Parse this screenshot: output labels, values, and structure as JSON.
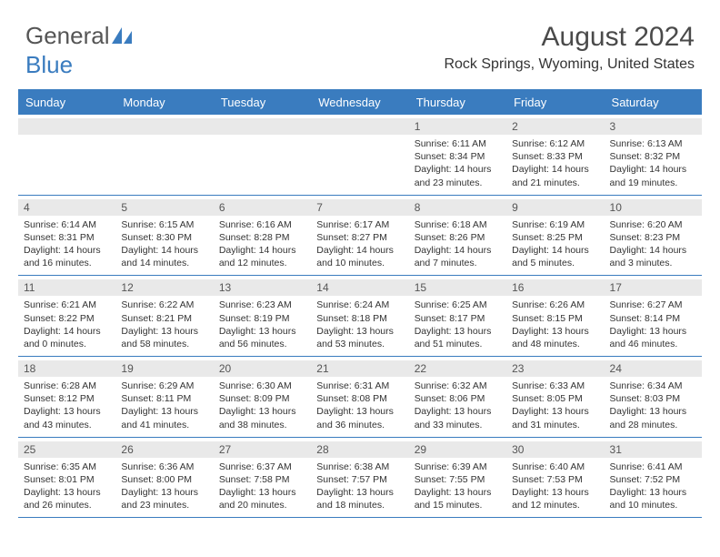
{
  "logo": {
    "text1": "General",
    "text2": "Blue"
  },
  "title": "August 2024",
  "location": "Rock Springs, Wyoming, United States",
  "colors": {
    "header_bg": "#3a7cbf",
    "header_text": "#ffffff",
    "band_bg": "#e9e9e9",
    "text": "#333333",
    "rule": "#3a7cbf"
  },
  "day_names": [
    "Sunday",
    "Monday",
    "Tuesday",
    "Wednesday",
    "Thursday",
    "Friday",
    "Saturday"
  ],
  "weeks": [
    [
      {
        "day": "",
        "sunrise": "",
        "sunset": "",
        "daylight": ""
      },
      {
        "day": "",
        "sunrise": "",
        "sunset": "",
        "daylight": ""
      },
      {
        "day": "",
        "sunrise": "",
        "sunset": "",
        "daylight": ""
      },
      {
        "day": "",
        "sunrise": "",
        "sunset": "",
        "daylight": ""
      },
      {
        "day": "1",
        "sunrise": "Sunrise: 6:11 AM",
        "sunset": "Sunset: 8:34 PM",
        "daylight": "Daylight: 14 hours and 23 minutes."
      },
      {
        "day": "2",
        "sunrise": "Sunrise: 6:12 AM",
        "sunset": "Sunset: 8:33 PM",
        "daylight": "Daylight: 14 hours and 21 minutes."
      },
      {
        "day": "3",
        "sunrise": "Sunrise: 6:13 AM",
        "sunset": "Sunset: 8:32 PM",
        "daylight": "Daylight: 14 hours and 19 minutes."
      }
    ],
    [
      {
        "day": "4",
        "sunrise": "Sunrise: 6:14 AM",
        "sunset": "Sunset: 8:31 PM",
        "daylight": "Daylight: 14 hours and 16 minutes."
      },
      {
        "day": "5",
        "sunrise": "Sunrise: 6:15 AM",
        "sunset": "Sunset: 8:30 PM",
        "daylight": "Daylight: 14 hours and 14 minutes."
      },
      {
        "day": "6",
        "sunrise": "Sunrise: 6:16 AM",
        "sunset": "Sunset: 8:28 PM",
        "daylight": "Daylight: 14 hours and 12 minutes."
      },
      {
        "day": "7",
        "sunrise": "Sunrise: 6:17 AM",
        "sunset": "Sunset: 8:27 PM",
        "daylight": "Daylight: 14 hours and 10 minutes."
      },
      {
        "day": "8",
        "sunrise": "Sunrise: 6:18 AM",
        "sunset": "Sunset: 8:26 PM",
        "daylight": "Daylight: 14 hours and 7 minutes."
      },
      {
        "day": "9",
        "sunrise": "Sunrise: 6:19 AM",
        "sunset": "Sunset: 8:25 PM",
        "daylight": "Daylight: 14 hours and 5 minutes."
      },
      {
        "day": "10",
        "sunrise": "Sunrise: 6:20 AM",
        "sunset": "Sunset: 8:23 PM",
        "daylight": "Daylight: 14 hours and 3 minutes."
      }
    ],
    [
      {
        "day": "11",
        "sunrise": "Sunrise: 6:21 AM",
        "sunset": "Sunset: 8:22 PM",
        "daylight": "Daylight: 14 hours and 0 minutes."
      },
      {
        "day": "12",
        "sunrise": "Sunrise: 6:22 AM",
        "sunset": "Sunset: 8:21 PM",
        "daylight": "Daylight: 13 hours and 58 minutes."
      },
      {
        "day": "13",
        "sunrise": "Sunrise: 6:23 AM",
        "sunset": "Sunset: 8:19 PM",
        "daylight": "Daylight: 13 hours and 56 minutes."
      },
      {
        "day": "14",
        "sunrise": "Sunrise: 6:24 AM",
        "sunset": "Sunset: 8:18 PM",
        "daylight": "Daylight: 13 hours and 53 minutes."
      },
      {
        "day": "15",
        "sunrise": "Sunrise: 6:25 AM",
        "sunset": "Sunset: 8:17 PM",
        "daylight": "Daylight: 13 hours and 51 minutes."
      },
      {
        "day": "16",
        "sunrise": "Sunrise: 6:26 AM",
        "sunset": "Sunset: 8:15 PM",
        "daylight": "Daylight: 13 hours and 48 minutes."
      },
      {
        "day": "17",
        "sunrise": "Sunrise: 6:27 AM",
        "sunset": "Sunset: 8:14 PM",
        "daylight": "Daylight: 13 hours and 46 minutes."
      }
    ],
    [
      {
        "day": "18",
        "sunrise": "Sunrise: 6:28 AM",
        "sunset": "Sunset: 8:12 PM",
        "daylight": "Daylight: 13 hours and 43 minutes."
      },
      {
        "day": "19",
        "sunrise": "Sunrise: 6:29 AM",
        "sunset": "Sunset: 8:11 PM",
        "daylight": "Daylight: 13 hours and 41 minutes."
      },
      {
        "day": "20",
        "sunrise": "Sunrise: 6:30 AM",
        "sunset": "Sunset: 8:09 PM",
        "daylight": "Daylight: 13 hours and 38 minutes."
      },
      {
        "day": "21",
        "sunrise": "Sunrise: 6:31 AM",
        "sunset": "Sunset: 8:08 PM",
        "daylight": "Daylight: 13 hours and 36 minutes."
      },
      {
        "day": "22",
        "sunrise": "Sunrise: 6:32 AM",
        "sunset": "Sunset: 8:06 PM",
        "daylight": "Daylight: 13 hours and 33 minutes."
      },
      {
        "day": "23",
        "sunrise": "Sunrise: 6:33 AM",
        "sunset": "Sunset: 8:05 PM",
        "daylight": "Daylight: 13 hours and 31 minutes."
      },
      {
        "day": "24",
        "sunrise": "Sunrise: 6:34 AM",
        "sunset": "Sunset: 8:03 PM",
        "daylight": "Daylight: 13 hours and 28 minutes."
      }
    ],
    [
      {
        "day": "25",
        "sunrise": "Sunrise: 6:35 AM",
        "sunset": "Sunset: 8:01 PM",
        "daylight": "Daylight: 13 hours and 26 minutes."
      },
      {
        "day": "26",
        "sunrise": "Sunrise: 6:36 AM",
        "sunset": "Sunset: 8:00 PM",
        "daylight": "Daylight: 13 hours and 23 minutes."
      },
      {
        "day": "27",
        "sunrise": "Sunrise: 6:37 AM",
        "sunset": "Sunset: 7:58 PM",
        "daylight": "Daylight: 13 hours and 20 minutes."
      },
      {
        "day": "28",
        "sunrise": "Sunrise: 6:38 AM",
        "sunset": "Sunset: 7:57 PM",
        "daylight": "Daylight: 13 hours and 18 minutes."
      },
      {
        "day": "29",
        "sunrise": "Sunrise: 6:39 AM",
        "sunset": "Sunset: 7:55 PM",
        "daylight": "Daylight: 13 hours and 15 minutes."
      },
      {
        "day": "30",
        "sunrise": "Sunrise: 6:40 AM",
        "sunset": "Sunset: 7:53 PM",
        "daylight": "Daylight: 13 hours and 12 minutes."
      },
      {
        "day": "31",
        "sunrise": "Sunrise: 6:41 AM",
        "sunset": "Sunset: 7:52 PM",
        "daylight": "Daylight: 13 hours and 10 minutes."
      }
    ]
  ]
}
